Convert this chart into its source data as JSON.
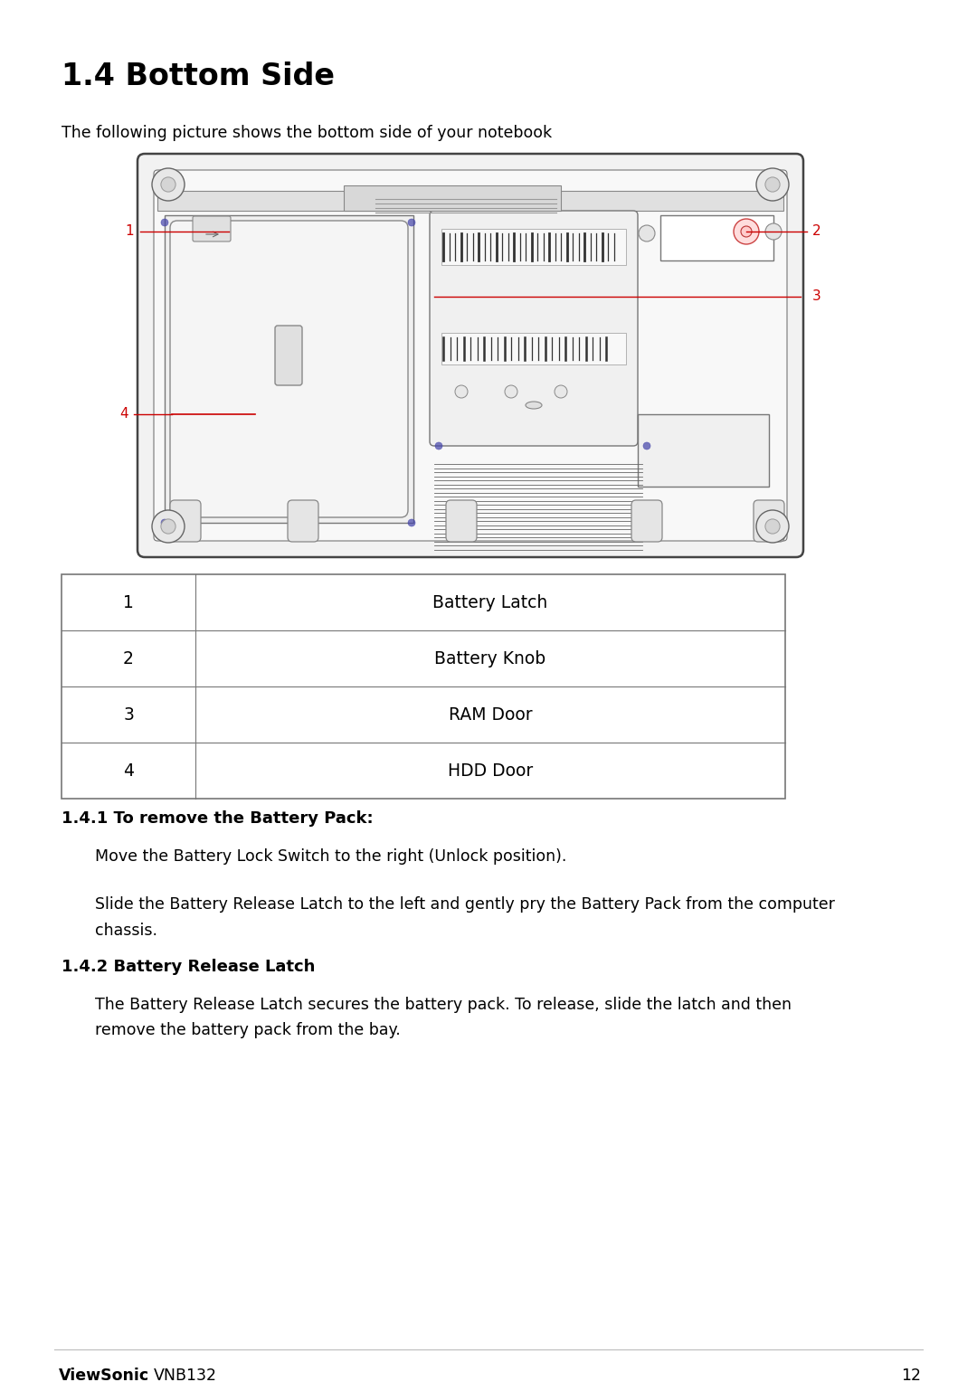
{
  "title": "1.4 Bottom Side",
  "subtitle": "The following picture shows the bottom side of your notebook",
  "table_rows": [
    [
      "1",
      "Battery Latch"
    ],
    [
      "2",
      "Battery Knob"
    ],
    [
      "3",
      "RAM Door"
    ],
    [
      "4",
      "HDD Door"
    ]
  ],
  "section_141_title": "1.4.1 To remove the Battery Pack:",
  "section_141_para1": "Move the Battery Lock Switch to the right (Unlock position).",
  "section_141_para2": "Slide the Battery Release Latch to the left and gently pry the Battery Pack from the computer\nchassis.",
  "section_142_title": "1.4.2 Battery Release Latch",
  "section_142_para": "The Battery Release Latch secures the battery pack. To release, slide the latch and then\nremove the battery pack from the bay.",
  "footer_brand": "ViewSonic",
  "footer_model": "VNB132",
  "footer_page": "12",
  "bg_color": "#ffffff",
  "text_color": "#000000",
  "red_color": "#cc0000",
  "blue_color": "#4444aa",
  "diagram_edge": "#666666",
  "diagram_face": "#f8f8f8",
  "diagram_dark": "#333333"
}
